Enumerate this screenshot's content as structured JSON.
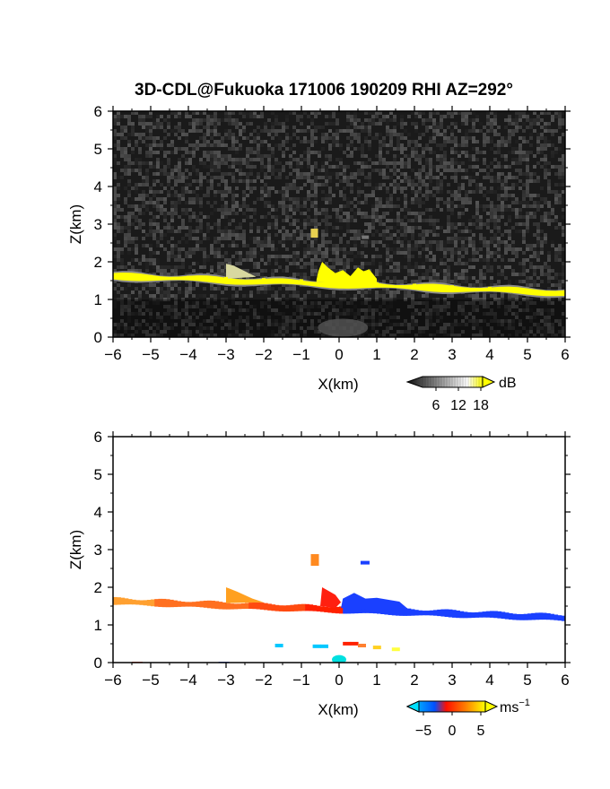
{
  "chart_data": [
    {
      "type": "heatmap",
      "panel": "reflectivity",
      "title": "3D-CDL@Fukuoka 171006 190209 RHI AZ=292°",
      "xlabel": "X(km)",
      "ylabel": "Z(km)",
      "xlim": [
        -6,
        6
      ],
      "ylim": [
        0,
        6
      ],
      "xticks": [
        -6,
        -5,
        -4,
        -3,
        -2,
        -1,
        0,
        1,
        2,
        3,
        4,
        5,
        6
      ],
      "yticks": [
        0,
        1,
        2,
        3,
        4,
        5,
        6
      ],
      "background": "noise (dark gray speckle)",
      "colorbar": {
        "unit": "dB",
        "ticks": [
          "6",
          "12",
          "18"
        ],
        "range": [
          0,
          20
        ],
        "colors": [
          "#111111",
          "#ffffff",
          "#ffff00"
        ]
      },
      "features": [
        {
          "name": "aerosol layer",
          "x_start": -6,
          "z_start": 1.62,
          "x_end": 6,
          "z_end": 1.18,
          "value_db": 20
        },
        {
          "name": "plume",
          "x_range": [
            -0.6,
            1.0
          ],
          "z_top": 2.0,
          "value_db": 20
        },
        {
          "name": "echo",
          "x": -0.65,
          "z": 2.75,
          "value_db": 16
        }
      ],
      "marks": [
        {
          "xy": [
            -6.0,
            1.62
          ]
        },
        {
          "xy": [
            -5.0,
            1.6
          ]
        },
        {
          "xy": [
            -4.0,
            1.58
          ]
        },
        {
          "xy": [
            -3.0,
            1.55
          ]
        },
        {
          "xy": [
            -2.0,
            1.52
          ]
        },
        {
          "xy": [
            -1.0,
            1.49
          ]
        },
        {
          "xy": [
            0.0,
            1.46
          ]
        },
        {
          "xy": [
            1.0,
            1.41
          ]
        },
        {
          "xy": [
            2.0,
            1.37
          ]
        },
        {
          "xy": [
            3.0,
            1.33
          ]
        },
        {
          "xy": [
            4.0,
            1.29
          ]
        },
        {
          "xy": [
            5.0,
            1.24
          ]
        },
        {
          "xy": [
            6.0,
            1.18
          ]
        }
      ]
    },
    {
      "type": "heatmap",
      "panel": "doppler-velocity",
      "xlabel": "X(km)",
      "ylabel": "Z(km)",
      "xlim": [
        -6,
        6
      ],
      "ylim": [
        0,
        6
      ],
      "xticks": [
        -6,
        -5,
        -4,
        -3,
        -2,
        -1,
        0,
        1,
        2,
        3,
        4,
        5,
        6
      ],
      "yticks": [
        0,
        1,
        2,
        3,
        4,
        5,
        6
      ],
      "colorbar": {
        "unit": "ms",
        "unit_exponent": "−1",
        "ticks": [
          "−5",
          "0",
          "5"
        ],
        "range": [
          -7,
          7
        ],
        "colors": [
          "#00e0ff",
          "#0050ff",
          "#ff2000",
          "#ffff00"
        ]
      },
      "features": [
        {
          "name": "aerosol layer west",
          "x_range": [
            -6,
            0
          ],
          "z_start": 1.62,
          "z_end": 1.46,
          "velocity_ms": 3
        },
        {
          "name": "aerosol layer east",
          "x_range": [
            0,
            6
          ],
          "z_start": 1.46,
          "z_end": 1.18,
          "velocity_ms": -4
        },
        {
          "name": "elevated echo",
          "x": -0.65,
          "z": 2.75,
          "velocity_ms": 4
        },
        {
          "name": "small echo",
          "x": 0.75,
          "z": 2.65,
          "velocity_ms": -4
        }
      ],
      "marks": [
        {
          "xy": [
            -6.0,
            1.62
          ],
          "v": 4
        },
        {
          "xy": [
            -4.0,
            1.58
          ],
          "v": 3
        },
        {
          "xy": [
            -2.0,
            1.52
          ],
          "v": 2
        },
        {
          "xy": [
            -0.5,
            1.7
          ],
          "v": 1
        },
        {
          "xy": [
            0.5,
            1.45
          ],
          "v": -4
        },
        {
          "xy": [
            2.0,
            1.37
          ],
          "v": -4
        },
        {
          "xy": [
            4.0,
            1.29
          ],
          "v": -4
        },
        {
          "xy": [
            6.0,
            1.18
          ],
          "v": -4
        }
      ]
    }
  ]
}
